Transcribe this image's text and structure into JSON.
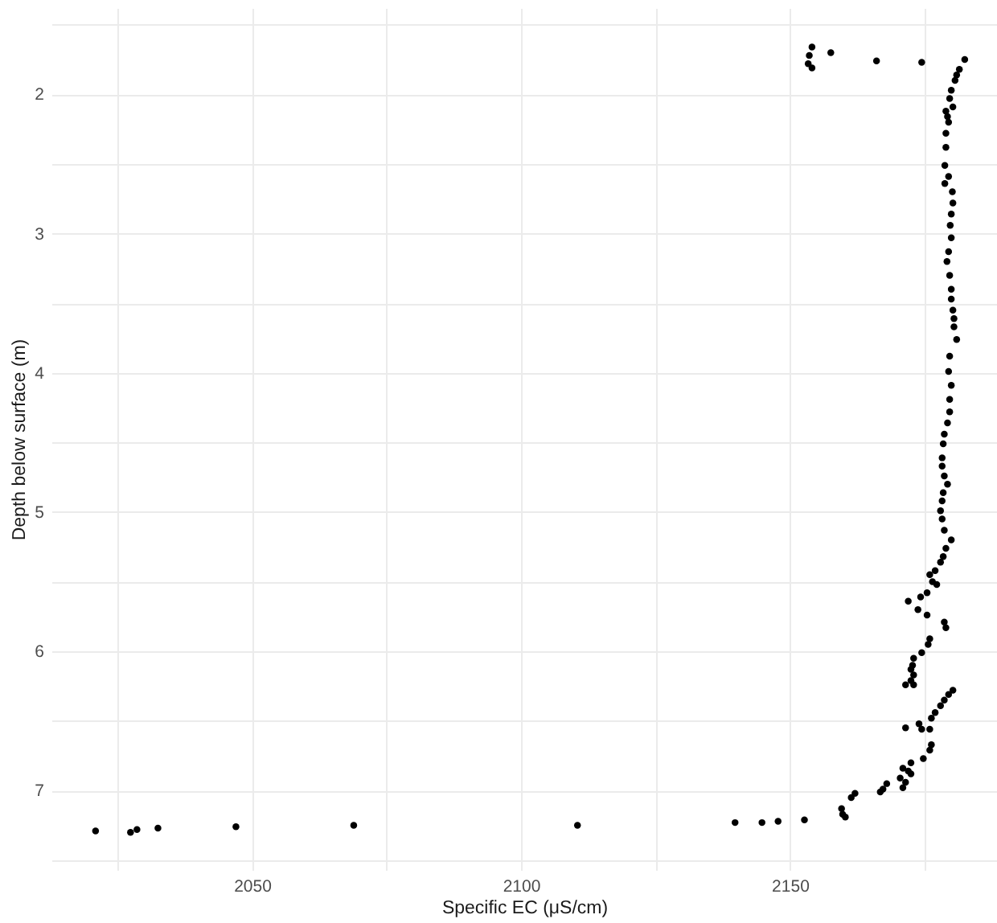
{
  "chart_data": {
    "type": "scatter",
    "xlabel": "Specific EC (μS/cm)",
    "ylabel": "Depth below surface (m)",
    "color": "#000000",
    "marker": "circle",
    "grid": true,
    "xlim": [
      2012.7,
      2188.5
    ],
    "ylim": [
      7.57,
      1.38
    ],
    "xticks": [
      {
        "value": 2025,
        "label": null
      },
      2050,
      {
        "value": 2075,
        "label": null
      },
      2100,
      {
        "value": 2125,
        "label": null
      },
      2150,
      {
        "value": 2175,
        "label": null
      }
    ],
    "yticks": [
      {
        "value": 1.5,
        "label": null
      },
      2,
      {
        "value": 2.5,
        "label": null
      },
      3,
      {
        "value": 3.5,
        "label": null
      },
      4,
      {
        "value": 4.5,
        "label": null
      },
      5,
      {
        "value": 5.5,
        "label": null
      },
      6,
      {
        "value": 6.5,
        "label": null
      },
      7,
      {
        "value": 7.5,
        "label": null
      }
    ],
    "x": [
      2154.1,
      2153.6,
      2153.4,
      2154.1,
      2157.6,
      2166.1,
      2174.5,
      2182.5,
      2181.5,
      2181.0,
      2180.7,
      2180.0,
      2179.7,
      2180.3,
      2179.0,
      2179.3,
      2179.5,
      2179.0,
      2179.0,
      2178.8,
      2179.5,
      2178.8,
      2180.2,
      2180.3,
      2180.0,
      2179.8,
      2180.0,
      2179.5,
      2179.2,
      2179.7,
      2180.0,
      2180.0,
      2180.3,
      2180.5,
      2180.5,
      2181.0,
      2179.7,
      2179.5,
      2180.0,
      2179.7,
      2179.7,
      2179.3,
      2178.7,
      2178.5,
      2178.3,
      2178.3,
      2178.7,
      2179.3,
      2178.5,
      2178.3,
      2178.0,
      2178.3,
      2178.7,
      2180.0,
      2179.0,
      2178.5,
      2178.0,
      2177.0,
      2176.0,
      2176.5,
      2177.3,
      2175.5,
      2174.3,
      2172.0,
      2173.8,
      2175.5,
      2178.7,
      2179.0,
      2176.0,
      2175.7,
      2174.5,
      2173.0,
      2172.8,
      2172.5,
      2173.0,
      2172.5,
      2171.5,
      2173.0,
      2180.3,
      2179.5,
      2178.7,
      2178.0,
      2177.0,
      2176.3,
      2174.0,
      2171.5,
      2174.5,
      2176.0,
      2176.3,
      2176.0,
      2174.8,
      2172.5,
      2171.0,
      2172.0,
      2172.5,
      2170.5,
      2171.5,
      2168.0,
      2171.0,
      2167.3,
      2166.8,
      2162.1,
      2161.4,
      2159.6,
      2159.8,
      2160.3,
      2152.7,
      2147.8,
      2144.8,
      2139.8,
      2110.5,
      2068.9,
      2047.0,
      2032.5,
      2028.6,
      2027.4,
      2020.9
    ],
    "values": [
      1.66,
      1.72,
      1.78,
      1.81,
      1.7,
      1.76,
      1.77,
      1.75,
      1.82,
      1.86,
      1.9,
      1.97,
      2.03,
      2.09,
      2.12,
      2.16,
      2.2,
      2.28,
      2.38,
      2.51,
      2.59,
      2.64,
      2.7,
      2.78,
      2.86,
      2.94,
      3.03,
      3.13,
      3.2,
      3.3,
      3.4,
      3.47,
      3.55,
      3.61,
      3.67,
      3.76,
      3.88,
      3.99,
      4.09,
      4.19,
      4.28,
      4.36,
      4.44,
      4.51,
      4.61,
      4.67,
      4.74,
      4.8,
      4.86,
      4.92,
      4.99,
      5.05,
      5.13,
      5.2,
      5.26,
      5.32,
      5.36,
      5.42,
      5.45,
      5.5,
      5.52,
      5.58,
      5.61,
      5.64,
      5.7,
      5.74,
      5.79,
      5.83,
      5.91,
      5.95,
      6.01,
      6.05,
      6.1,
      6.13,
      6.17,
      6.21,
      6.24,
      6.24,
      6.28,
      6.31,
      6.35,
      6.39,
      6.44,
      6.48,
      6.52,
      6.55,
      6.56,
      6.56,
      6.67,
      6.71,
      6.77,
      6.8,
      6.84,
      6.86,
      6.88,
      6.91,
      6.94,
      6.95,
      6.98,
      6.99,
      7.01,
      7.02,
      7.05,
      7.13,
      7.17,
      7.19,
      7.21,
      7.22,
      7.23,
      7.23,
      7.25,
      7.25,
      7.26,
      7.27,
      7.28,
      7.3,
      7.29
    ]
  }
}
